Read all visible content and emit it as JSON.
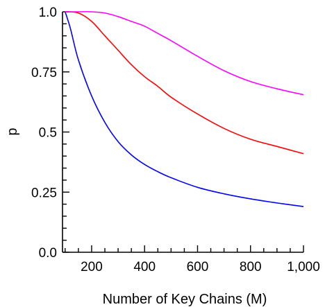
{
  "chart_data": {
    "type": "line",
    "title": "",
    "xlabel": "Number of Key Chains (M)",
    "ylabel": "p",
    "xlim": [
      90,
      1000
    ],
    "ylim": [
      0,
      1
    ],
    "grid": false,
    "legend": "none",
    "x_ticks": [
      {
        "value": 200,
        "label": "200"
      },
      {
        "value": 400,
        "label": "400"
      },
      {
        "value": 600,
        "label": "600"
      },
      {
        "value": 800,
        "label": "800"
      },
      {
        "value": 1000,
        "label": "1,000"
      }
    ],
    "y_ticks": [
      {
        "value": 0,
        "label": "0.0"
      },
      {
        "value": 0.25,
        "label": "0.25"
      },
      {
        "value": 0.5,
        "label": "0.5"
      },
      {
        "value": 0.75,
        "label": "0.75"
      },
      {
        "value": 1,
        "label": "1.0"
      }
    ],
    "series": [
      {
        "color": "#0000ff",
        "x": [
          100,
          120,
          150,
          200,
          250,
          300,
          350,
          400,
          450,
          500,
          600,
          700,
          800,
          900,
          1000
        ],
        "y": [
          1.0,
          0.93,
          0.8,
          0.65,
          0.54,
          0.46,
          0.405,
          0.365,
          0.335,
          0.31,
          0.27,
          0.243,
          0.222,
          0.205,
          0.19
        ]
      },
      {
        "color": "#ff0000",
        "x": [
          100,
          150,
          200,
          250,
          300,
          350,
          400,
          450,
          500,
          600,
          700,
          800,
          900,
          1000
        ],
        "y": [
          1.0,
          0.995,
          0.96,
          0.9,
          0.84,
          0.78,
          0.73,
          0.69,
          0.645,
          0.575,
          0.515,
          0.47,
          0.44,
          0.41
        ]
      },
      {
        "color": "#ff00ff",
        "x": [
          100,
          150,
          200,
          250,
          300,
          350,
          400,
          450,
          500,
          600,
          700,
          800,
          900,
          1000
        ],
        "y": [
          1.0,
          1.0,
          1.0,
          0.995,
          0.98,
          0.96,
          0.94,
          0.91,
          0.88,
          0.815,
          0.755,
          0.71,
          0.68,
          0.655
        ]
      }
    ]
  }
}
